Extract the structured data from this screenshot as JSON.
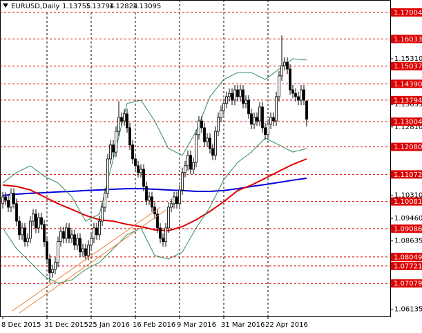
{
  "chart_data": {
    "type": "candlestick",
    "title": "EURUSD,Daily",
    "open": [
      1.1,
      1.1025,
      1.1012,
      1.0987,
      1.1038,
      1.1,
      1.0936,
      1.0886,
      1.0911,
      1.0861,
      1.0873,
      1.0936,
      1.0962,
      1.0911,
      1.0949,
      1.0924,
      1.0861,
      1.0797,
      1.0747,
      1.0759,
      1.0785,
      1.0861,
      1.0898,
      1.0873,
      1.0911,
      1.0873,
      1.0886,
      1.0848,
      1.0873,
      1.0823,
      1.0835,
      1.081,
      1.0848,
      1.0873,
      1.0911,
      1.0886,
      1.0936,
      1.0987,
      1.1038,
      1.1164,
      1.1215,
      1.1189,
      1.1265,
      1.1316,
      1.1303,
      1.1329,
      1.1278,
      1.1215,
      1.1164,
      1.1139,
      1.1114,
      1.1126,
      1.1063,
      1.1012,
      1.1025,
      1.0987,
      1.0962,
      1.0911,
      1.0873,
      1.0861,
      1.0911,
      1.0987,
      1.1,
      1.1025,
      1.1,
      1.105,
      1.1114,
      1.1139,
      1.1177,
      1.1126,
      1.1151,
      1.1253,
      1.1303,
      1.1278,
      1.1227,
      1.124,
      1.1202,
      1.1177,
      1.1265,
      1.1316,
      1.1341,
      1.1367,
      1.1392,
      1.1404,
      1.1379,
      1.1417,
      1.1392,
      1.1417,
      1.1367,
      1.1379,
      1.1329,
      1.1291,
      1.1316,
      1.1303,
      1.1354,
      1.1278,
      1.1253,
      1.1291,
      1.1316,
      1.1303,
      1.1392,
      1.1468,
      1.1506,
      1.1518,
      1.1493,
      1.1417,
      1.1404,
      1.1392,
      1.1379,
      1.1417,
      1.13755
    ],
    "high": [
      1.1043,
      1.1043,
      1.103,
      1.1056,
      1.1056,
      1.1018,
      1.0954,
      1.0929,
      1.0929,
      1.0891,
      1.0954,
      1.098,
      1.098,
      1.0967,
      1.0967,
      1.0942,
      1.0879,
      1.0815,
      1.0777,
      1.0803,
      1.0879,
      1.0916,
      1.0916,
      1.0929,
      1.0929,
      1.0904,
      1.0904,
      1.0891,
      1.0891,
      1.0853,
      1.0853,
      1.0866,
      1.0891,
      1.0929,
      1.0929,
      1.0954,
      1.1005,
      1.1056,
      1.1182,
      1.1233,
      1.1233,
      1.1283,
      1.1376,
      1.1334,
      1.1347,
      1.1347,
      1.1296,
      1.1233,
      1.1182,
      1.1157,
      1.1144,
      1.1144,
      1.1081,
      1.1043,
      1.1043,
      1.1005,
      1.098,
      1.0929,
      1.0891,
      1.0929,
      1.1005,
      1.1018,
      1.1043,
      1.1043,
      1.1068,
      1.1132,
      1.1157,
      1.1195,
      1.1195,
      1.1169,
      1.1271,
      1.1321,
      1.1321,
      1.1296,
      1.1258,
      1.1258,
      1.122,
      1.1283,
      1.1334,
      1.1359,
      1.1385,
      1.141,
      1.1422,
      1.1422,
      1.1435,
      1.1435,
      1.1435,
      1.1435,
      1.1397,
      1.1397,
      1.1347,
      1.1334,
      1.1334,
      1.1372,
      1.1372,
      1.1296,
      1.1309,
      1.1334,
      1.1334,
      1.141,
      1.1486,
      1.1616,
      1.1536,
      1.1536,
      1.1511,
      1.1435,
      1.1422,
      1.141,
      1.1435,
      1.1435,
      1.13794
    ],
    "low": [
      1.0982,
      1.0994,
      1.0969,
      1.0969,
      1.0982,
      1.0918,
      1.0868,
      1.0868,
      1.0843,
      1.0843,
      1.0855,
      1.0918,
      1.0893,
      1.0893,
      1.0906,
      1.0843,
      1.0779,
      1.0711,
      1.0729,
      1.0741,
      1.0767,
      1.0843,
      1.0855,
      1.0855,
      1.0855,
      1.0855,
      1.083,
      1.083,
      1.0805,
      1.0805,
      1.0792,
      1.0792,
      1.083,
      1.0855,
      1.0868,
      1.0868,
      1.0918,
      1.0969,
      1.102,
      1.1146,
      1.1171,
      1.1171,
      1.1247,
      1.1285,
      1.1285,
      1.126,
      1.1197,
      1.1146,
      1.1121,
      1.1096,
      1.1096,
      1.1045,
      1.0994,
      1.0994,
      1.0969,
      1.0944,
      1.0893,
      1.0855,
      1.0843,
      1.0843,
      1.0893,
      1.0969,
      1.0982,
      1.0982,
      1.0982,
      1.1032,
      1.1096,
      1.1121,
      1.1108,
      1.1108,
      1.1133,
      1.1235,
      1.126,
      1.1209,
      1.1209,
      1.1184,
      1.1159,
      1.1159,
      1.1247,
      1.1298,
      1.1323,
      1.1349,
      1.1374,
      1.1361,
      1.1361,
      1.1374,
      1.1374,
      1.1349,
      1.1349,
      1.1311,
      1.1273,
      1.1273,
      1.1285,
      1.1285,
      1.126,
      1.1235,
      1.1235,
      1.1273,
      1.1285,
      1.1285,
      1.1374,
      1.145,
      1.1488,
      1.1475,
      1.1399,
      1.1386,
      1.1374,
      1.1361,
      1.1361,
      1.1361,
      1.12824
    ],
    "close": [
      1.1025,
      1.1012,
      1.0987,
      1.1038,
      1.1,
      1.0936,
      1.0886,
      1.0911,
      1.0861,
      1.0873,
      1.0936,
      1.0962,
      1.0911,
      1.0949,
      1.0924,
      1.0861,
      1.0797,
      1.0747,
      1.0759,
      1.0785,
      1.0861,
      1.0898,
      1.0873,
      1.0911,
      1.0873,
      1.0886,
      1.0848,
      1.0873,
      1.0823,
      1.0835,
      1.081,
      1.0848,
      1.0873,
      1.0911,
      1.0886,
      1.0936,
      1.0987,
      1.1038,
      1.1164,
      1.1215,
      1.1189,
      1.1265,
      1.1316,
      1.1303,
      1.1329,
      1.1278,
      1.1215,
      1.1164,
      1.1139,
      1.1114,
      1.1126,
      1.1063,
      1.1012,
      1.1025,
      1.0987,
      1.0962,
      1.0911,
      1.0873,
      1.0861,
      1.0911,
      1.0987,
      1.1,
      1.1025,
      1.1,
      1.105,
      1.1114,
      1.1139,
      1.1177,
      1.1126,
      1.1151,
      1.1253,
      1.1303,
      1.1278,
      1.1227,
      1.124,
      1.1202,
      1.1177,
      1.1265,
      1.1316,
      1.1341,
      1.1367,
      1.1392,
      1.1404,
      1.1379,
      1.1417,
      1.1392,
      1.1417,
      1.1367,
      1.1379,
      1.1329,
      1.1291,
      1.1316,
      1.1303,
      1.1354,
      1.1278,
      1.1253,
      1.1291,
      1.1316,
      1.1303,
      1.1392,
      1.1468,
      1.1506,
      1.1518,
      1.1493,
      1.1417,
      1.1404,
      1.1392,
      1.1379,
      1.1417,
      1.1379,
      1.13095
    ],
    "series": [
      {
        "color": "#0000dd",
        "values": [
          1.103,
          1.1035,
          1.1038,
          1.104,
          1.1043,
          1.1045,
          1.1048,
          1.105,
          1.1053,
          1.1055,
          1.1055,
          1.1053,
          1.105,
          1.1048,
          1.1045,
          1.1045,
          1.1048,
          1.1055,
          1.1063,
          1.107,
          1.1078,
          1.1086,
          1.1093
        ]
      },
      {
        "color": "#dd0000",
        "values": [
          1.1068,
          1.1063,
          1.105,
          1.1025,
          1.1,
          1.0979,
          1.0957,
          1.0941,
          1.0936,
          1.0924,
          1.0916,
          1.0904,
          1.0901,
          1.0916,
          1.0941,
          1.0972,
          1.1007,
          1.1048,
          1.1068,
          1.1093,
          1.1119,
          1.1144,
          1.1164
        ]
      },
      {
        "color": "#2e8b57",
        "values": [
          1.1076,
          1.1114,
          1.1139,
          1.1101,
          1.1076,
          1.1025,
          1.0936,
          1.0962,
          1.1164,
          1.1367,
          1.1379,
          1.1303,
          1.1202,
          1.1177,
          1.1265,
          1.1392,
          1.1455,
          1.148,
          1.148,
          1.1455,
          1.1493,
          1.1531,
          1.1526
        ]
      },
      {
        "color": "#2e8b57",
        "values": [
          1.0911,
          1.0835,
          1.0785,
          1.0734,
          1.0709,
          1.0721,
          1.0759,
          1.0785,
          1.0835,
          1.0886,
          1.0911,
          1.081,
          1.0797,
          1.0823,
          1.0911,
          1.0987,
          1.1088,
          1.1151,
          1.1189,
          1.124,
          1.1215,
          1.1189,
          1.1202
        ]
      }
    ],
    "levels": [
      1.17004,
      1.16033,
      1.15037,
      {
        "value": 1.1439,
        "label": "1.14390"
      },
      1.13794,
      1.13004,
      {
        "value": 1.1208,
        "label": "1.12080"
      },
      1.11072,
      1.10081,
      1.09086,
      1.08049,
      1.07721,
      1.07079
    ],
    "level_color": "#dd0000",
    "ylim": [
      1.0587,
      1.1746
    ],
    "yticks": [
      {
        "value": 1.1531,
        "label": "1.15310"
      },
      1.13635,
      {
        "value": 1.1281,
        "label": "1.12810"
      },
      {
        "value": 1.1031,
        "label": "1.10310"
      },
      {
        "value": 1.0946,
        "label": "1.09460"
      },
      1.08635,
      1.06135
    ],
    "xticks": [
      {
        "value": 0,
        "label": "8 Dec 2015"
      },
      {
        "value": 16,
        "label": "31 Dec 2015"
      },
      {
        "value": 32,
        "label": "25 Jan 2016"
      },
      {
        "value": 48,
        "label": "16 Feb 2016"
      },
      {
        "value": 64,
        "label": "9 Mar 2016"
      },
      {
        "value": 80,
        "label": "31 Mar 2016"
      },
      {
        "value": 96,
        "label": "22 Apr 2016"
      }
    ],
    "grid": true
  }
}
